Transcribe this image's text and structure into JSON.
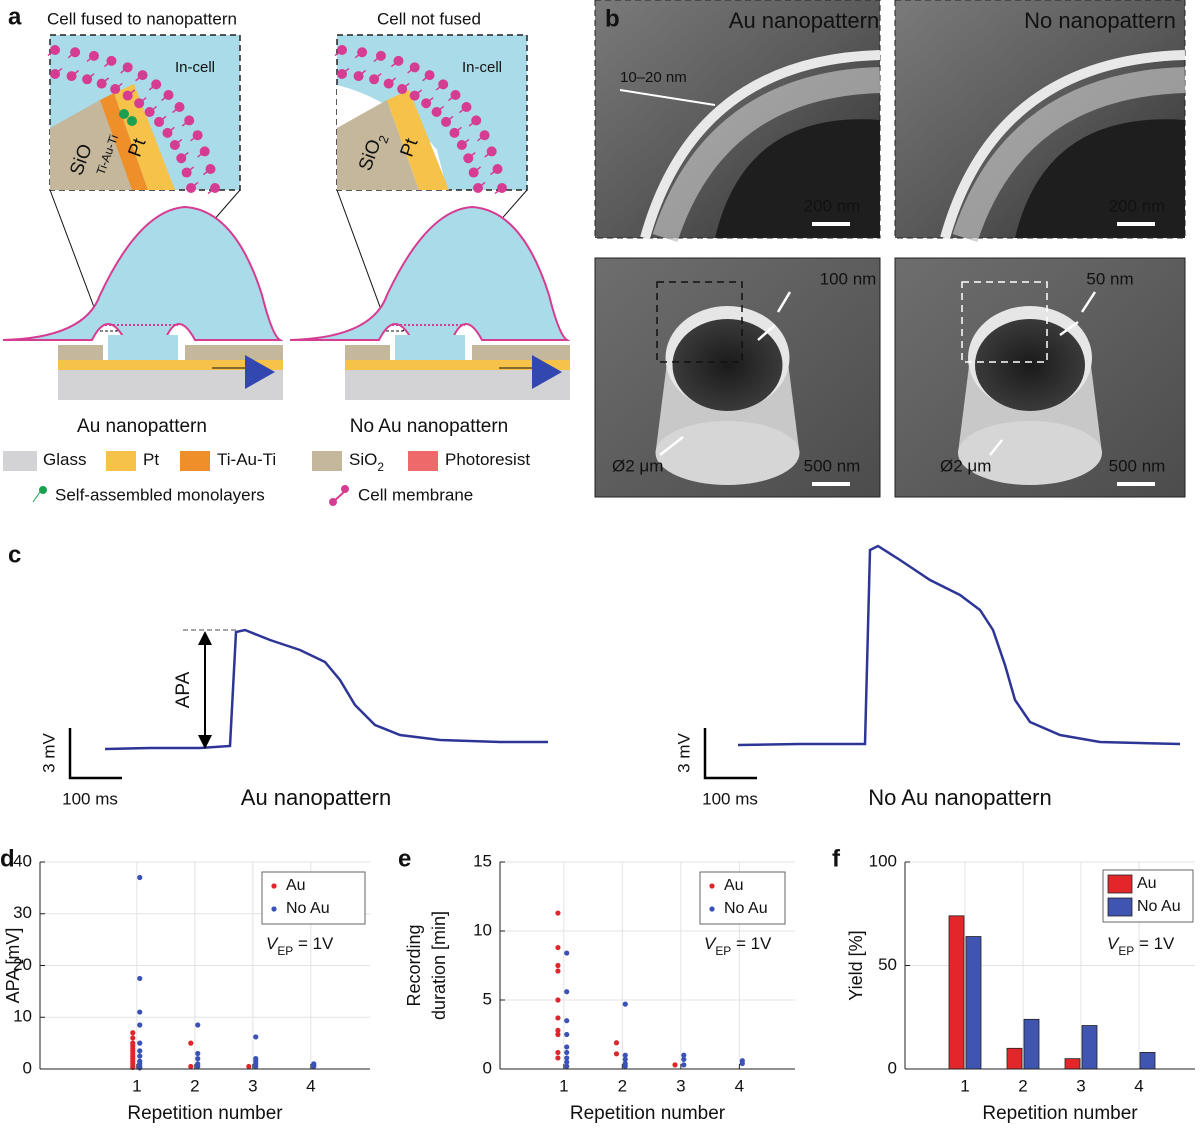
{
  "panels": {
    "a": {
      "letter": "a",
      "titles": [
        "Cell fused to nanopattern",
        "Cell not fused"
      ],
      "in_cell": [
        "In-cell",
        "In-cell"
      ],
      "left_layers": {
        "sio": "SiO",
        "tiauti": "Ti-Au-Ti",
        "pt": "Pt"
      },
      "right_layers": {
        "sio": "SiO",
        "sio_sub": "2",
        "pt": "Pt"
      },
      "captions": [
        "Au nanopattern",
        "No Au nanopattern"
      ],
      "legend": [
        {
          "label": "Glass",
          "color": "#d3d3d5"
        },
        {
          "label": "Pt",
          "color": "#f6c24a"
        },
        {
          "label": "Ti-Au-Ti",
          "color": "#ee8f2a"
        },
        {
          "label": "SiO",
          "sub": "2",
          "color": "#c5b79c"
        },
        {
          "label": "Photoresist",
          "color": "#ee6a6a"
        }
      ],
      "legend2": [
        {
          "label": "Self-assembled monolayers",
          "color": "#1aa050"
        },
        {
          "label": "Cell membrane",
          "color": "#d63c92"
        }
      ]
    },
    "b": {
      "letter": "b",
      "titles": [
        "Au nanopattern",
        "No nanopattern"
      ],
      "rim_label": "10–20 nm",
      "wall_labels": [
        "100 nm",
        "50 nm"
      ],
      "diameter_labels": [
        "Ø2 μm",
        "Ø2 μm"
      ],
      "scale_top": [
        "200 nm",
        "200 nm"
      ],
      "scale_bottom": [
        "500 nm",
        "500 nm"
      ]
    },
    "c": {
      "letter": "c",
      "apa": "APA",
      "scale_v": [
        "3 mV",
        "3 mV"
      ],
      "scale_t": [
        "100 ms",
        "100 ms"
      ],
      "captions": [
        "Au nanopattern",
        "No Au nanopattern"
      ]
    }
  },
  "chart_data": [
    {
      "type": "scatter",
      "panel": "d",
      "ylabel": [
        "APA [mV]"
      ],
      "xlabel": "Repetition number",
      "xlim": [
        -0.67,
        5.02
      ],
      "xticks": [
        1,
        2,
        3,
        4
      ],
      "ylim": [
        0,
        40
      ],
      "yticks": [
        0,
        10,
        20,
        30,
        40
      ],
      "grid": true,
      "annotation": {
        "main": "V",
        "sub": "EP",
        "rest": " = 1V"
      },
      "series": [
        {
          "name": "Au",
          "color": "#e0262a",
          "x": [
            0.93,
            0.93,
            0.93,
            0.93,
            0.93,
            0.93,
            0.93,
            0.93,
            0.93,
            0.93,
            0.93,
            0.93,
            0.93,
            1.93,
            1.93,
            2.93
          ],
          "values": [
            7,
            6,
            5,
            4.5,
            4,
            3.5,
            3,
            2.5,
            2,
            1.5,
            1,
            0.5,
            0.3,
            5,
            0.5,
            0.5
          ]
        },
        {
          "name": "No Au",
          "color": "#3a52b5",
          "x": [
            1.05,
            1.05,
            1.05,
            1.05,
            1.05,
            1.05,
            1.05,
            1.05,
            1.05,
            1.05,
            1.05,
            2.05,
            2.05,
            2.05,
            2.05,
            2.05,
            3.05,
            3.05,
            3.05,
            3.05,
            3.05,
            4.05,
            4.05,
            4.05
          ],
          "values": [
            37,
            17.5,
            11,
            8.5,
            5,
            3.5,
            2.5,
            1.5,
            1,
            0.5,
            0.2,
            8.5,
            3,
            2,
            1,
            0.5,
            6.2,
            2,
            1.5,
            1,
            0.5,
            1,
            0.7,
            0.5
          ]
        }
      ]
    },
    {
      "type": "scatter",
      "panel": "e",
      "ylabel": [
        "Recording",
        "duration [min]"
      ],
      "xlabel": "Repetition number",
      "xlim": [
        -0.09,
        4.95
      ],
      "xticks": [
        1,
        2,
        3,
        4
      ],
      "ylim": [
        0,
        15
      ],
      "yticks": [
        0,
        5,
        10,
        15
      ],
      "grid": true,
      "annotation": {
        "main": "V",
        "sub": "EP",
        "rest": " = 1V"
      },
      "series": [
        {
          "name": "Au",
          "color": "#e0262a",
          "x": [
            0.9,
            0.9,
            0.9,
            0.9,
            0.9,
            0.9,
            0.9,
            0.9,
            0.9,
            0.9,
            1.9,
            1.9,
            2.9
          ],
          "values": [
            11.3,
            8.8,
            7.5,
            7.1,
            5,
            3.7,
            2.8,
            2.5,
            1.2,
            0.8,
            1.9,
            1.1,
            0.3
          ]
        },
        {
          "name": "No Au",
          "color": "#3a52b5",
          "x": [
            1.05,
            1.05,
            1.05,
            1.05,
            1.05,
            1.05,
            1.05,
            1.05,
            1.05,
            2.05,
            2.05,
            2.05,
            2.05,
            2.05,
            3.05,
            3.05,
            3.05,
            4.05,
            4.05
          ],
          "values": [
            8.4,
            5.6,
            3.5,
            2.5,
            1.6,
            1.2,
            0.8,
            0.5,
            0.2,
            4.7,
            1,
            0.7,
            0.4,
            0.2,
            1,
            0.7,
            0.3,
            0.6,
            0.4
          ]
        }
      ]
    },
    {
      "type": "bar",
      "panel": "f",
      "ylabel": [
        "Yield [%]"
      ],
      "xlabel": "Repetition number",
      "categories": [
        "1",
        "2",
        "3",
        "4"
      ],
      "ylim": [
        0,
        100
      ],
      "yticks": [
        0,
        50,
        100
      ],
      "grid": true,
      "annotation": {
        "main": "V",
        "sub": "EP",
        "rest": " = 1V"
      },
      "series": [
        {
          "name": "Au",
          "color": "#e3262a",
          "values": [
            74,
            10,
            5,
            0
          ]
        },
        {
          "name": "No Au",
          "color": "#3f55b0",
          "values": [
            64,
            24,
            21,
            8
          ]
        }
      ]
    }
  ]
}
